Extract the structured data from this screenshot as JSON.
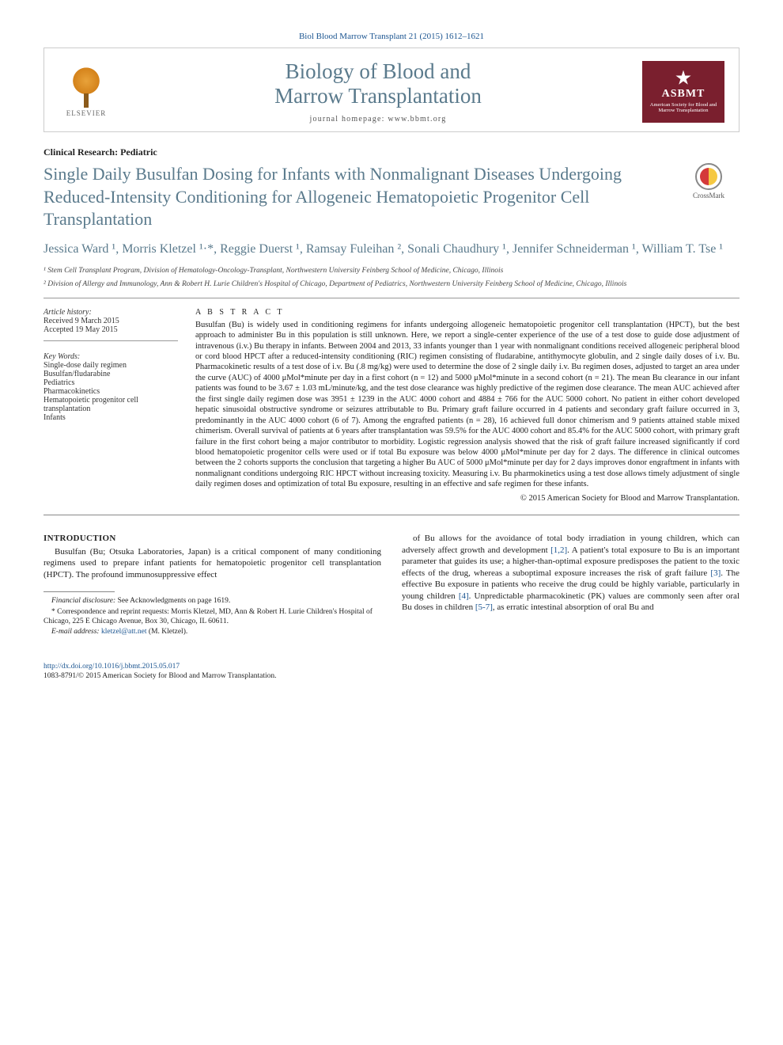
{
  "citation": "Biol Blood Marrow Transplant 21 (2015) 1612–1621",
  "header": {
    "elsevier_label": "ELSEVIER",
    "journal_title_l1": "Biology of Blood and",
    "journal_title_l2": "Marrow Transplantation",
    "homepage": "journal homepage: www.bbmt.org",
    "asbmt_acronym": "ASBMT",
    "asbmt_sub": "American Society for Blood and Marrow Transplantation"
  },
  "article_type": "Clinical Research: Pediatric",
  "crossmark_label": "CrossMark",
  "title": "Single Daily Busulfan Dosing for Infants with Nonmalignant Diseases Undergoing Reduced-Intensity Conditioning for Allogeneic Hematopoietic Progenitor Cell Transplantation",
  "authors_html": "Jessica Ward ¹, Morris Kletzel ¹·*, Reggie Duerst ¹, Ramsay Fuleihan ², Sonali Chaudhury ¹, Jennifer Schneiderman ¹, William T. Tse ¹",
  "affiliations": {
    "a1": "¹ Stem Cell Transplant Program, Division of Hematology-Oncology-Transplant, Northwestern University Feinberg School of Medicine, Chicago, Illinois",
    "a2": "² Division of Allergy and Immunology, Ann & Robert H. Lurie Children's Hospital of Chicago, Department of Pediatrics, Northwestern University Feinberg School of Medicine, Chicago, Illinois"
  },
  "meta": {
    "history_label": "Article history:",
    "received": "Received 9 March 2015",
    "accepted": "Accepted 19 May 2015",
    "kw_label": "Key Words:",
    "keywords": [
      "Single-dose daily regimen",
      "Busulfan/fludarabine",
      "Pediatrics",
      "Pharmacokinetics",
      "Hematopoietic progenitor cell transplantation",
      "Infants"
    ]
  },
  "abstract": {
    "heading": "A B S T R A C T",
    "text": "Busulfan (Bu) is widely used in conditioning regimens for infants undergoing allogeneic hematopoietic progenitor cell transplantation (HPCT), but the best approach to administer Bu in this population is still unknown. Here, we report a single-center experience of the use of a test dose to guide dose adjustment of intravenous (i.v.) Bu therapy in infants. Between 2004 and 2013, 33 infants younger than 1 year with nonmalignant conditions received allogeneic peripheral blood or cord blood HPCT after a reduced-intensity conditioning (RIC) regimen consisting of fludarabine, antithymocyte globulin, and 2 single daily doses of i.v. Bu. Pharmacokinetic results of a test dose of i.v. Bu (.8 mg/kg) were used to determine the dose of 2 single daily i.v. Bu regimen doses, adjusted to target an area under the curve (AUC) of 4000 μMol*minute per day in a first cohort (n = 12) and 5000 μMol*minute in a second cohort (n = 21). The mean Bu clearance in our infant patients was found to be 3.67 ± 1.03 mL/minute/kg, and the test dose clearance was highly predictive of the regimen dose clearance. The mean AUC achieved after the first single daily regimen dose was 3951 ± 1239 in the AUC 4000 cohort and 4884 ± 766 for the AUC 5000 cohort. No patient in either cohort developed hepatic sinusoidal obstructive syndrome or seizures attributable to Bu. Primary graft failure occurred in 4 patients and secondary graft failure occurred in 3, predominantly in the AUC 4000 cohort (6 of 7). Among the engrafted patients (n = 28), 16 achieved full donor chimerism and 9 patients attained stable mixed chimerism. Overall survival of patients at 6 years after transplantation was 59.5% for the AUC 4000 cohort and 85.4% for the AUC 5000 cohort, with primary graft failure in the first cohort being a major contributor to morbidity. Logistic regression analysis showed that the risk of graft failure increased significantly if cord blood hematopoietic progenitor cells were used or if total Bu exposure was below 4000 μMol*minute per day for 2 days. The difference in clinical outcomes between the 2 cohorts supports the conclusion that targeting a higher Bu AUC of 5000 μMol*minute per day for 2 days improves donor engraftment in infants with nonmalignant conditions undergoing RIC HPCT without increasing toxicity. Measuring i.v. Bu pharmokinetics using a test dose allows timely adjustment of single daily regimen doses and optimization of total Bu exposure, resulting in an effective and safe regimen for these infants.",
    "copyright": "© 2015 American Society for Blood and Marrow Transplantation."
  },
  "body": {
    "intro_heading": "INTRODUCTION",
    "col1_p1": "Busulfan (Bu; Otsuka Laboratories, Japan) is a critical component of many conditioning regimens used to prepare infant patients for hematopoietic progenitor cell transplantation (HPCT). The profound immunosuppressive effect",
    "col2_p1_a": "of Bu allows for the avoidance of total body irradiation in young children, which can adversely affect growth and development ",
    "col2_ref1": "[1,2]",
    "col2_p1_b": ". A patient's total exposure to Bu is an important parameter that guides its use; a higher-than-optimal exposure predisposes the patient to the toxic effects of the drug, whereas a suboptimal exposure increases the risk of graft failure ",
    "col2_ref2": "[3]",
    "col2_p1_c": ". The effective Bu exposure in patients who receive the drug could be highly variable, particularly in young children ",
    "col2_ref3": "[4]",
    "col2_p1_d": ". Unpredictable pharmacokinetic (PK) values are commonly seen after oral Bu doses in children ",
    "col2_ref4": "[5-7]",
    "col2_p1_e": ", as erratic intestinal absorption of oral Bu and"
  },
  "footnotes": {
    "fin_label": "Financial disclosure:",
    "fin_text": " See Acknowledgments on page 1619.",
    "corr": "* Correspondence and reprint requests: Morris Kletzel, MD, Ann & Robert H. Lurie Children's Hospital of Chicago, 225 E Chicago Avenue, Box 30, Chicago, IL 60611.",
    "email_label": "E-mail address:",
    "email": "kletzel@att.net",
    "email_suffix": " (M. Kletzel)."
  },
  "footer": {
    "doi": "http://dx.doi.org/10.1016/j.bbmt.2015.05.017",
    "issn": "1083-8791/© 2015 American Society for Blood and Marrow Transplantation."
  },
  "colors": {
    "link": "#1a5490",
    "heading": "#5a7a8c",
    "asbmt": "#7a1f2e"
  }
}
